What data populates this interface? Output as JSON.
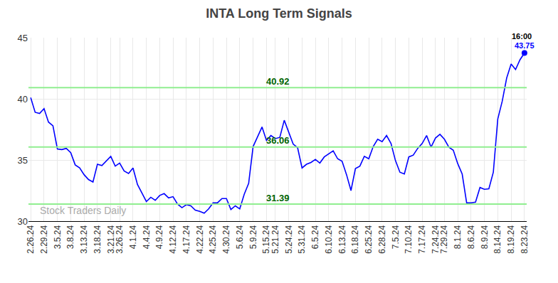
{
  "chart_data": {
    "type": "line",
    "title": "INTA Long Term Signals",
    "color": "#0000ff",
    "grid": true,
    "ylim": [
      30,
      45
    ],
    "yticks": [
      30,
      35,
      40,
      45
    ],
    "categories": [
      "2.26.24",
      null,
      null,
      "2.29.24",
      null,
      null,
      "3.5.24",
      null,
      null,
      "3.8.24",
      null,
      null,
      "3.13.24",
      null,
      null,
      "3.18.24",
      null,
      null,
      "3.21.24",
      null,
      "3.26.24",
      null,
      null,
      "4.1.24",
      null,
      null,
      "4.4.24",
      null,
      null,
      "4.9.24",
      null,
      null,
      "4.12.24",
      null,
      null,
      "4.17.24",
      null,
      null,
      "4.22.24",
      null,
      null,
      "4.25.24",
      null,
      null,
      "4.30.24",
      null,
      null,
      "5.6.24",
      null,
      null,
      "5.9.24",
      null,
      null,
      "5.15.24",
      null,
      "5.21.24",
      null,
      null,
      "5.24.24",
      null,
      null,
      "5.31.24",
      null,
      null,
      "6.5.24",
      null,
      null,
      "6.10.24",
      null,
      null,
      "6.13.24",
      null,
      null,
      "6.18.24",
      null,
      null,
      "6.25.24",
      null,
      null,
      "6.28.24",
      null,
      null,
      "7.5.24",
      null,
      null,
      "7.10.24",
      null,
      null,
      "7.17.24",
      null,
      null,
      "7.24.24",
      null,
      "7.29.24",
      null,
      null,
      "8.1.24",
      null,
      null,
      "8.6.24",
      null,
      null,
      "8.9.24",
      null,
      null,
      "8.14.24",
      null,
      null,
      "8.19.24",
      null,
      null,
      "8.23.24"
    ],
    "values": [
      40.1,
      38.9,
      38.8,
      39.2,
      38.1,
      37.8,
      35.9,
      35.85,
      35.95,
      35.6,
      34.6,
      34.35,
      33.8,
      33.4,
      33.2,
      34.65,
      34.55,
      34.95,
      35.3,
      34.5,
      34.75,
      34.1,
      33.9,
      34.35,
      33.0,
      32.3,
      31.6,
      31.95,
      31.7,
      32.1,
      32.25,
      31.9,
      32.0,
      31.4,
      31.1,
      31.35,
      31.25,
      30.9,
      30.8,
      30.65,
      31.0,
      31.5,
      31.5,
      31.85,
      31.85,
      30.95,
      31.25,
      31.0,
      32.2,
      33.1,
      36.1,
      36.9,
      37.7,
      36.6,
      37.0,
      36.75,
      36.85,
      38.25,
      37.25,
      36.3,
      36.0,
      34.35,
      34.65,
      34.8,
      35.05,
      34.75,
      35.25,
      35.5,
      35.75,
      35.1,
      34.9,
      33.8,
      32.5,
      34.3,
      34.5,
      35.3,
      35.1,
      36.1,
      36.7,
      36.5,
      37.0,
      36.35,
      34.95,
      34.0,
      33.85,
      35.25,
      35.4,
      35.95,
      36.35,
      37.0,
      36.05,
      36.8,
      37.1,
      36.7,
      36.05,
      35.8,
      34.7,
      33.85,
      31.5,
      31.5,
      31.55,
      32.75,
      32.6,
      32.65,
      34.0,
      38.35,
      39.8,
      41.7,
      42.85,
      42.4,
      43.2,
      43.75
    ],
    "reference_lines": [
      {
        "value": 40.92,
        "label": "40.92",
        "color": "#90ee90"
      },
      {
        "value": 36.06,
        "label": "36.06",
        "color": "#90ee90"
      },
      {
        "value": 31.39,
        "label": "31.39",
        "color": "#90ee90"
      }
    ],
    "end_annotation": {
      "text": "16:00",
      "value_label": "43.75"
    },
    "watermark": "Stock Traders Daily"
  }
}
